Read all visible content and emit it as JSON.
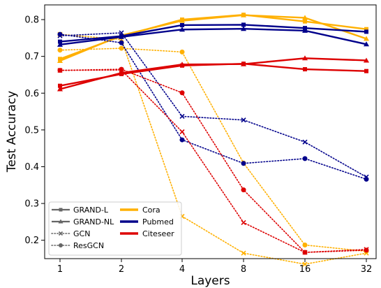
{
  "chart_data": {
    "type": "line",
    "xlabel": "Layers",
    "ylabel": "Test Accuracy",
    "x": [
      "1",
      "2",
      "4",
      "8",
      "16",
      "32"
    ],
    "ylim": [
      0.15,
      0.84
    ],
    "yticks": [
      0.2,
      0.3,
      0.4,
      0.5,
      0.6,
      0.7,
      0.8
    ],
    "ytick_labels": [
      "0.2",
      "0.3",
      "0.4",
      "0.5",
      "0.6",
      "0.7",
      "0.8"
    ],
    "grid": false,
    "legend_position": "bottom-left",
    "legend_methods": [
      {
        "name": "GRAND-L",
        "style": "solid",
        "marker": "square"
      },
      {
        "name": "GRAND-NL",
        "style": "solid",
        "marker": "triangle"
      },
      {
        "name": "GCN",
        "style": "dotted",
        "marker": "x"
      },
      {
        "name": "ResGCN",
        "style": "dotted",
        "marker": "circle"
      }
    ],
    "legend_datasets": [
      {
        "name": "Cora",
        "color": "#FFB000"
      },
      {
        "name": "Pubmed",
        "color": "#00008B"
      },
      {
        "name": "Citeseer",
        "color": "#DD0000"
      }
    ],
    "series": [
      {
        "dataset": "Cora",
        "method": "GRAND-L",
        "values": [
          0.693,
          0.755,
          0.8,
          0.813,
          0.795,
          0.774
        ]
      },
      {
        "dataset": "Cora",
        "method": "GRAND-NL",
        "values": [
          0.688,
          0.757,
          0.797,
          0.812,
          0.805,
          0.748
        ]
      },
      {
        "dataset": "Cora",
        "method": "GCN",
        "values": [
          0.76,
          0.746,
          0.265,
          0.165,
          0.135,
          0.165
        ]
      },
      {
        "dataset": "Cora",
        "method": "ResGCN",
        "values": [
          0.717,
          0.722,
          0.712,
          0.41,
          0.187,
          0.17
        ]
      },
      {
        "dataset": "Pubmed",
        "method": "GRAND-L",
        "values": [
          0.74,
          0.755,
          0.785,
          0.786,
          0.777,
          0.767
        ]
      },
      {
        "dataset": "Pubmed",
        "method": "GRAND-NL",
        "values": [
          0.732,
          0.753,
          0.773,
          0.775,
          0.77,
          0.733
        ]
      },
      {
        "dataset": "Pubmed",
        "method": "GCN",
        "values": [
          0.756,
          0.764,
          0.537,
          0.527,
          0.467,
          0.372
        ]
      },
      {
        "dataset": "Pubmed",
        "method": "ResGCN",
        "values": [
          0.76,
          0.737,
          0.473,
          0.409,
          0.422,
          0.366
        ]
      },
      {
        "dataset": "Citeseer",
        "method": "GRAND-L",
        "values": [
          0.62,
          0.652,
          0.675,
          0.68,
          0.665,
          0.66
        ]
      },
      {
        "dataset": "Citeseer",
        "method": "GRAND-NL",
        "values": [
          0.611,
          0.655,
          0.678,
          0.679,
          0.695,
          0.689
        ]
      },
      {
        "dataset": "Citeseer",
        "method": "GCN",
        "values": [
          0.662,
          0.663,
          0.495,
          0.248,
          0.167,
          0.175
        ]
      },
      {
        "dataset": "Citeseer",
        "method": "ResGCN",
        "values": [
          0.662,
          0.665,
          0.601,
          0.337,
          0.167,
          0.173
        ]
      }
    ]
  }
}
